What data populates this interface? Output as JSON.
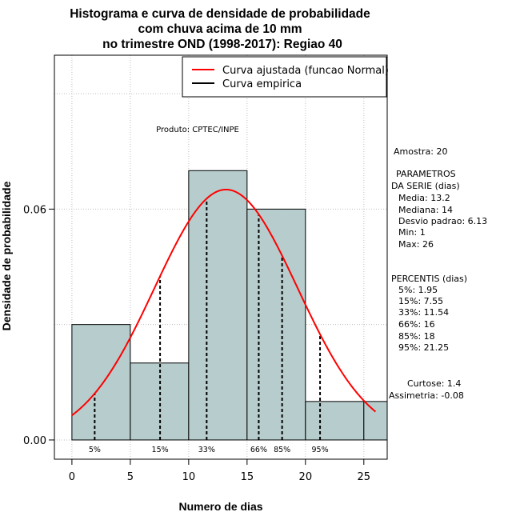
{
  "chart_data": {
    "type": "bar",
    "title": [
      "Histograma e curva de densidade de probabilidade",
      "com chuva acima de 10 mm",
      "no trimestre OND (1998-2017): Regiao 40"
    ],
    "xlabel": "Numero de dias",
    "ylabel": "Densidade de probabilidade",
    "xlim": [
      -1.5,
      27
    ],
    "ylim": [
      -0.005,
      0.1
    ],
    "x_ticks": [
      0,
      5,
      10,
      15,
      20,
      25
    ],
    "y_ticks": [
      0.0,
      0.06
    ],
    "y_tick_labels": [
      "0.00",
      "0.06"
    ],
    "bin_edges": [
      0,
      5,
      10,
      15,
      20,
      25,
      27
    ],
    "densities": [
      0.03,
      0.02,
      0.07,
      0.06,
      0.01,
      0.01
    ],
    "bar_color": "#b7cccc",
    "normal_fit": {
      "mean": 13.2,
      "sd": 6.13,
      "from": 0,
      "to": 26,
      "color": "#ff0000"
    },
    "percentiles": [
      {
        "label": "5%",
        "value": 1.95
      },
      {
        "label": "15%",
        "value": 7.55
      },
      {
        "label": "33%",
        "value": 11.54
      },
      {
        "label": "66%",
        "value": 16
      },
      {
        "label": "85%",
        "value": 18
      },
      {
        "label": "95%",
        "value": 21.25
      }
    ],
    "legend": {
      "position": "top-right",
      "entries": [
        {
          "label": "Curva ajustada (funcao Normal)",
          "color": "#ff0000"
        },
        {
          "label": "Curva empirica",
          "color": "#000000"
        }
      ]
    },
    "annotation": "Produto: CPTEC/INPE",
    "side_panel": [
      "Amostra: 20",
      "PARAMETROS",
      "DA SERIE (dias)",
      "Media: 13.2",
      "Mediana: 14",
      "Desvio padrao: 6.13",
      "Min: 1",
      "Max: 26",
      "PERCENTIS (dias)",
      "5%: 1.95",
      "15%: 7.55",
      "33%: 11.54",
      "66%: 16",
      "85%: 18",
      "95%: 21.25",
      "Curtose: 1.4",
      "Assimetria: -0.08"
    ]
  }
}
